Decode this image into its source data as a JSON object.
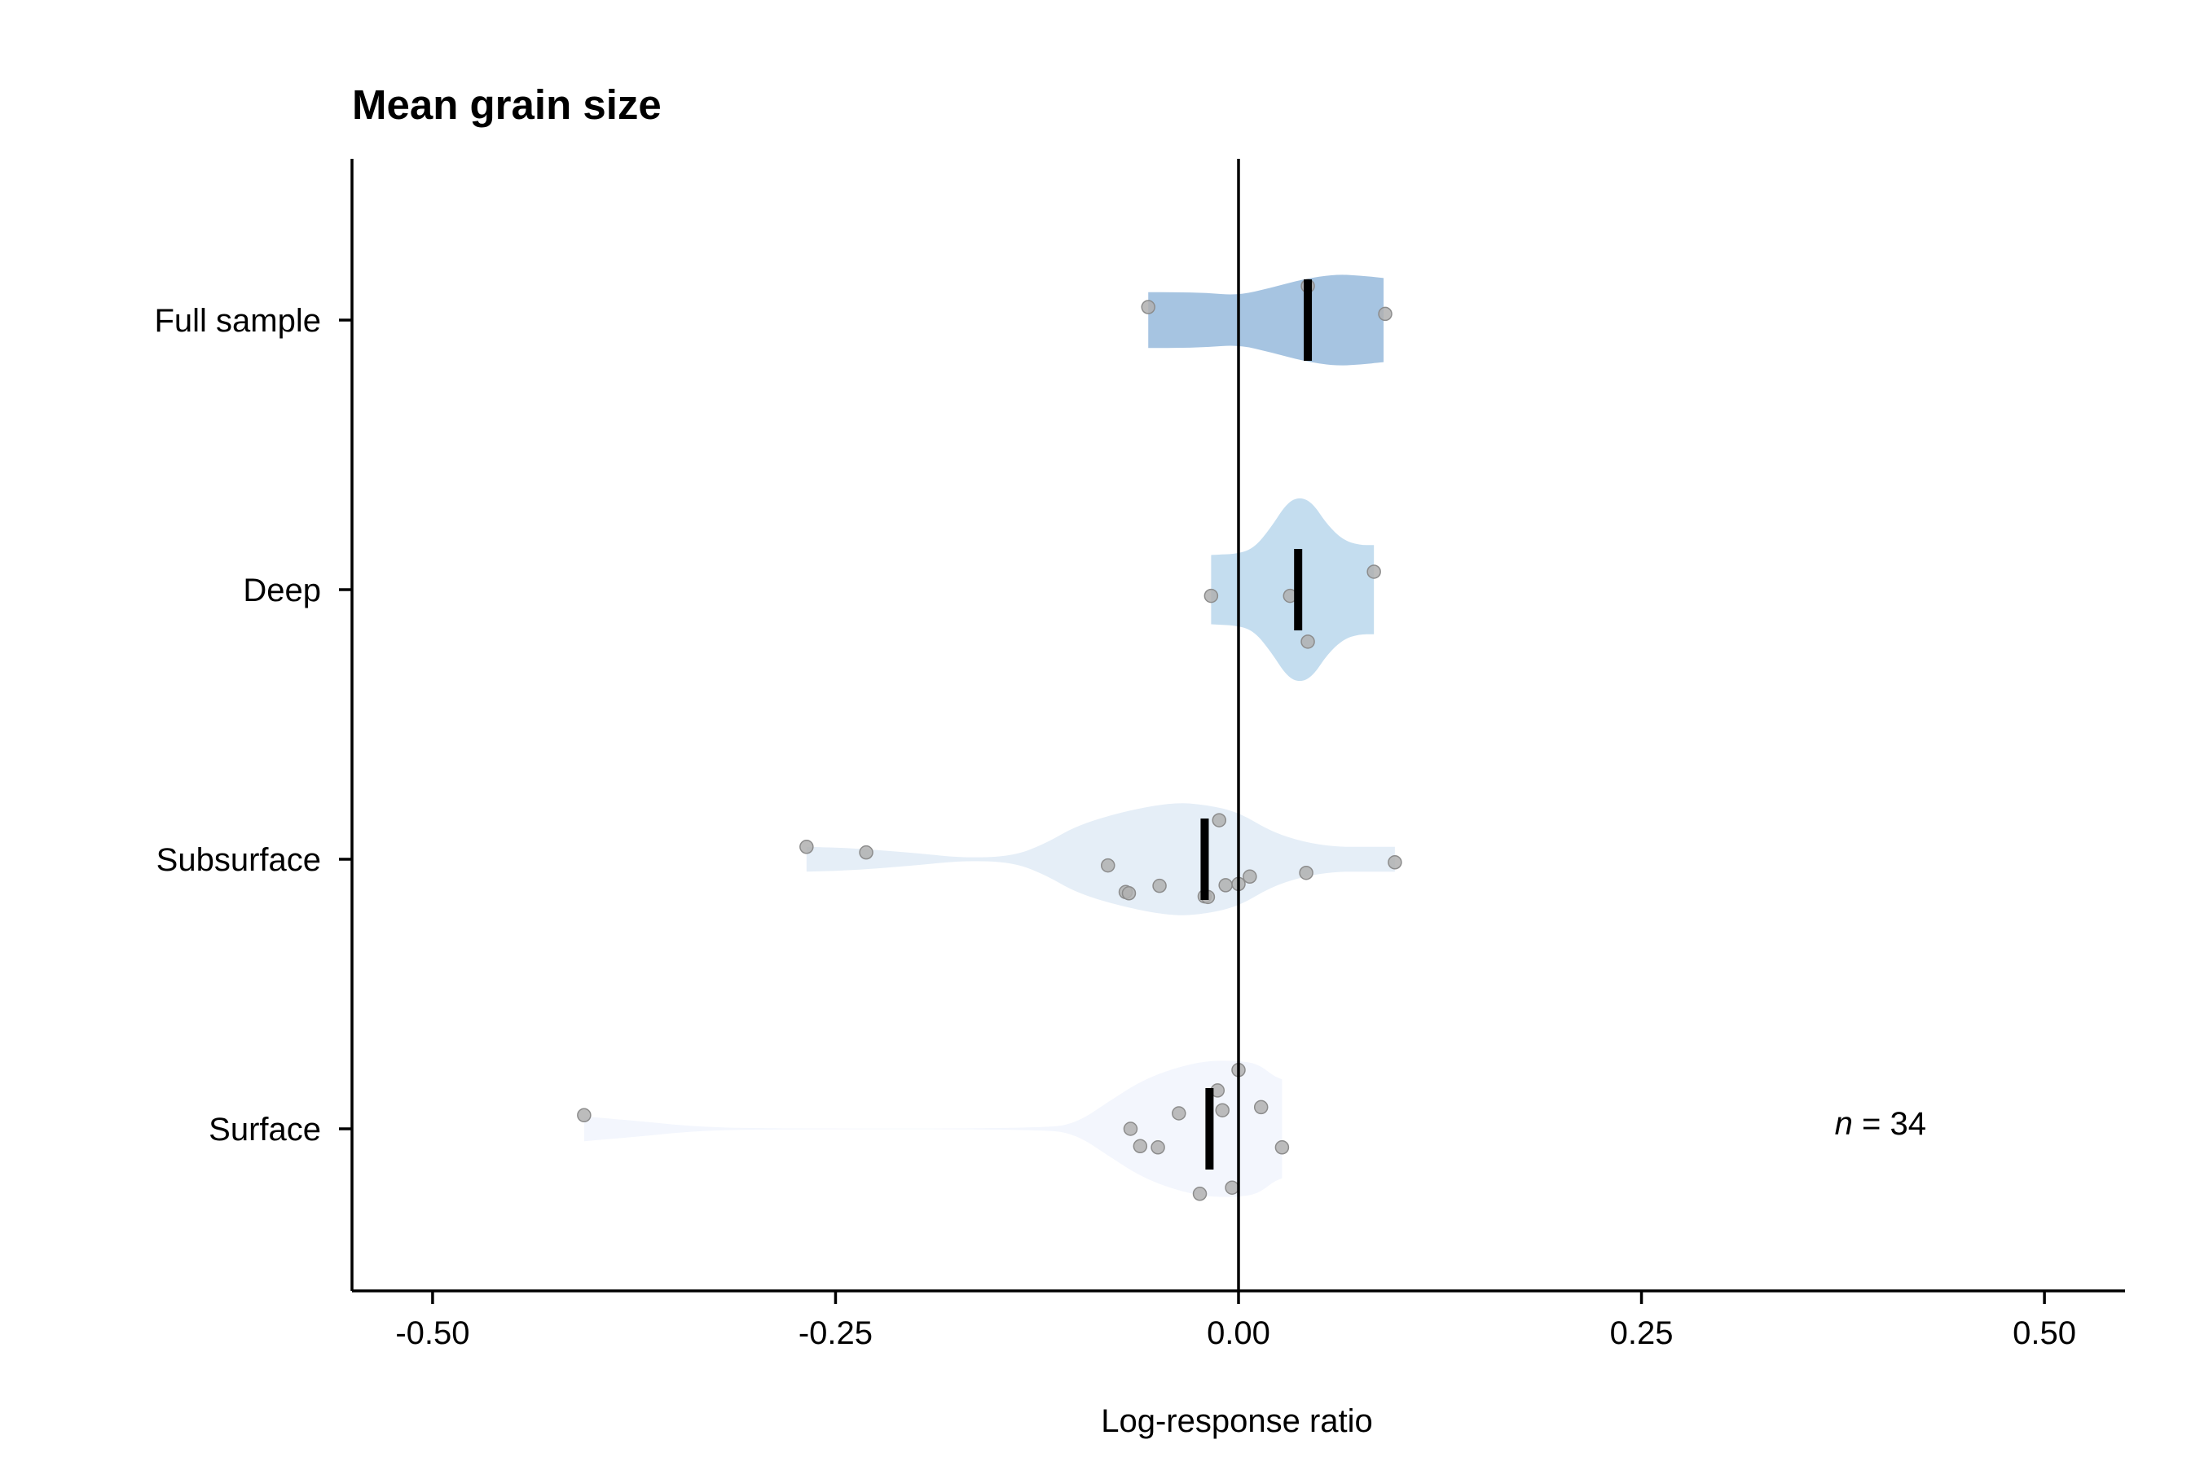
{
  "chart_data": {
    "type": "violin",
    "title": "Mean grain size",
    "xlabel": "Log-response ratio",
    "ylabel": "",
    "xlim": [
      -0.55,
      0.55
    ],
    "x_ticks": [
      -0.5,
      -0.25,
      0.0,
      0.25,
      0.5
    ],
    "x_tick_labels": [
      "-0.50",
      "-0.25",
      "0.00",
      "0.25",
      "0.50"
    ],
    "reference_line": 0.0,
    "grid": false,
    "legend": "none",
    "annotation": {
      "italic": "n",
      "text": " = 34"
    },
    "groups": [
      {
        "label": "Full sample",
        "color": "#a6c4e1",
        "mean": 0.043,
        "points": [
          {
            "x": 0.043,
            "offset": 0.55
          },
          {
            "x": -0.056,
            "offset": 0.21
          },
          {
            "x": 0.091,
            "offset": 0.1
          }
        ],
        "density": [
          [
            -0.056,
            0.45
          ],
          [
            -0.04,
            0.45
          ],
          [
            -0.02,
            0.44
          ],
          [
            0.0,
            0.4
          ],
          [
            0.02,
            0.52
          ],
          [
            0.04,
            0.66
          ],
          [
            0.06,
            0.74
          ],
          [
            0.075,
            0.72
          ],
          [
            0.09,
            0.68
          ]
        ]
      },
      {
        "label": "Deep",
        "color": "#c4ddef",
        "mean": 0.037,
        "points": [
          {
            "x": 0.084,
            "offset": 0.29
          },
          {
            "x": -0.017,
            "offset": -0.1
          },
          {
            "x": 0.032,
            "offset": -0.1
          },
          {
            "x": 0.043,
            "offset": -0.84
          }
        ],
        "density": [
          [
            -0.017,
            0.56
          ],
          [
            0.0,
            0.58
          ],
          [
            0.01,
            0.68
          ],
          [
            0.02,
            1.0
          ],
          [
            0.03,
            1.4
          ],
          [
            0.038,
            1.5
          ],
          [
            0.046,
            1.4
          ],
          [
            0.055,
            1.05
          ],
          [
            0.065,
            0.8
          ],
          [
            0.075,
            0.72
          ],
          [
            0.084,
            0.72
          ]
        ]
      },
      {
        "label": "Subsurface",
        "color": "#e5eef7",
        "mean": -0.021,
        "points": [
          {
            "x": -0.268,
            "offset": 0.2
          },
          {
            "x": -0.231,
            "offset": 0.11
          },
          {
            "x": -0.012,
            "offset": 0.63
          },
          {
            "x": -0.081,
            "offset": -0.1
          },
          {
            "x": -0.049,
            "offset": -0.43
          },
          {
            "x": -0.07,
            "offset": -0.53
          },
          {
            "x": -0.068,
            "offset": -0.55
          },
          {
            "x": -0.021,
            "offset": -0.6
          },
          {
            "x": -0.019,
            "offset": -0.61
          },
          {
            "x": -0.008,
            "offset": -0.42
          },
          {
            "x": 0.0,
            "offset": -0.4
          },
          {
            "x": 0.007,
            "offset": -0.28
          },
          {
            "x": 0.042,
            "offset": -0.22
          },
          {
            "x": 0.097,
            "offset": -0.05
          }
        ],
        "density": [
          [
            -0.268,
            0.2
          ],
          [
            -0.24,
            0.18
          ],
          [
            -0.2,
            0.1
          ],
          [
            -0.17,
            0.02
          ],
          [
            -0.14,
            0.05
          ],
          [
            -0.12,
            0.25
          ],
          [
            -0.1,
            0.55
          ],
          [
            -0.07,
            0.78
          ],
          [
            -0.04,
            0.92
          ],
          [
            -0.02,
            0.88
          ],
          [
            0.0,
            0.76
          ],
          [
            0.02,
            0.45
          ],
          [
            0.04,
            0.28
          ],
          [
            0.06,
            0.2
          ],
          [
            0.08,
            0.2
          ],
          [
            0.097,
            0.2
          ]
        ]
      },
      {
        "label": "Surface",
        "color": "#f3f6fd",
        "mean": -0.018,
        "points": [
          {
            "x": -0.406,
            "offset": 0.22
          },
          {
            "x": 0.0,
            "offset": 0.95
          },
          {
            "x": -0.013,
            "offset": 0.62
          },
          {
            "x": -0.037,
            "offset": 0.25
          },
          {
            "x": -0.01,
            "offset": 0.3
          },
          {
            "x": 0.014,
            "offset": 0.35
          },
          {
            "x": -0.067,
            "offset": 0.0
          },
          {
            "x": -0.061,
            "offset": -0.28
          },
          {
            "x": -0.05,
            "offset": -0.3
          },
          {
            "x": 0.027,
            "offset": -0.3
          },
          {
            "x": -0.004,
            "offset": -0.95
          },
          {
            "x": -0.024,
            "offset": -1.05
          }
        ],
        "density": [
          [
            -0.406,
            0.2
          ],
          [
            -0.37,
            0.12
          ],
          [
            -0.34,
            0.04
          ],
          [
            -0.3,
            0.005
          ],
          [
            -0.12,
            0.005
          ],
          [
            -0.1,
            0.1
          ],
          [
            -0.08,
            0.45
          ],
          [
            -0.06,
            0.78
          ],
          [
            -0.04,
            0.98
          ],
          [
            -0.02,
            1.1
          ],
          [
            0.0,
            1.1
          ],
          [
            0.012,
            1.05
          ],
          [
            0.022,
            0.85
          ],
          [
            0.027,
            0.8
          ]
        ]
      }
    ]
  }
}
